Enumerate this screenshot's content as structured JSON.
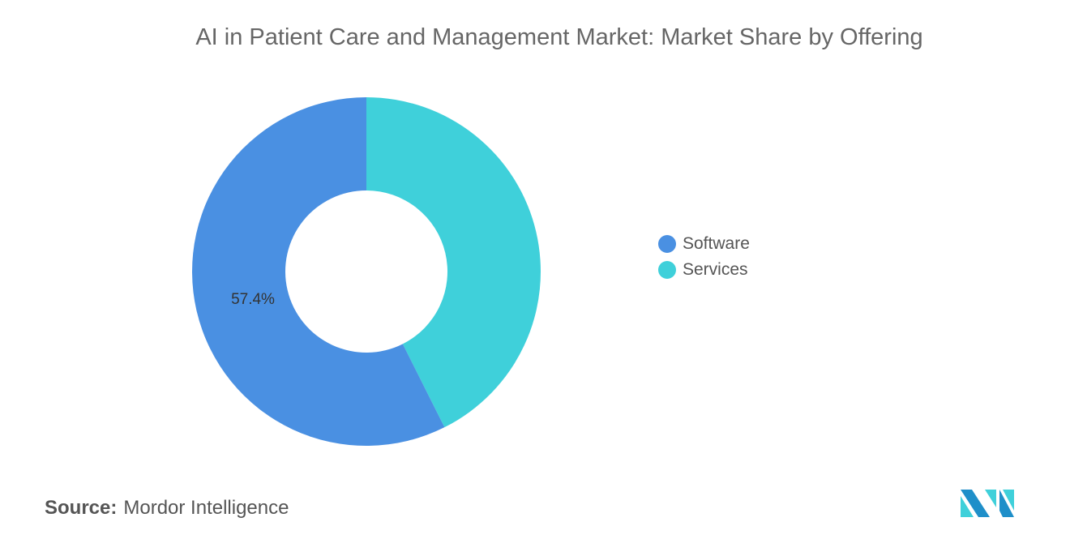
{
  "chart_data": {
    "type": "pie",
    "donut": true,
    "title": "AI in Patient Care and Management Market: Market Share by Offering",
    "slices": [
      {
        "label": "Software",
        "value": 57.4,
        "color": "#4A90E2",
        "data_label": "57.4%"
      },
      {
        "label": "Services",
        "value": 42.6,
        "color": "#3FD0DA"
      }
    ],
    "legend_placement": "right"
  },
  "source": {
    "label": "Source:",
    "text": "Mordor Intelligence"
  },
  "logo": {
    "text": "Mordor Intelligence logo",
    "colors": [
      "#1F8FC9",
      "#3FD0DA"
    ]
  }
}
